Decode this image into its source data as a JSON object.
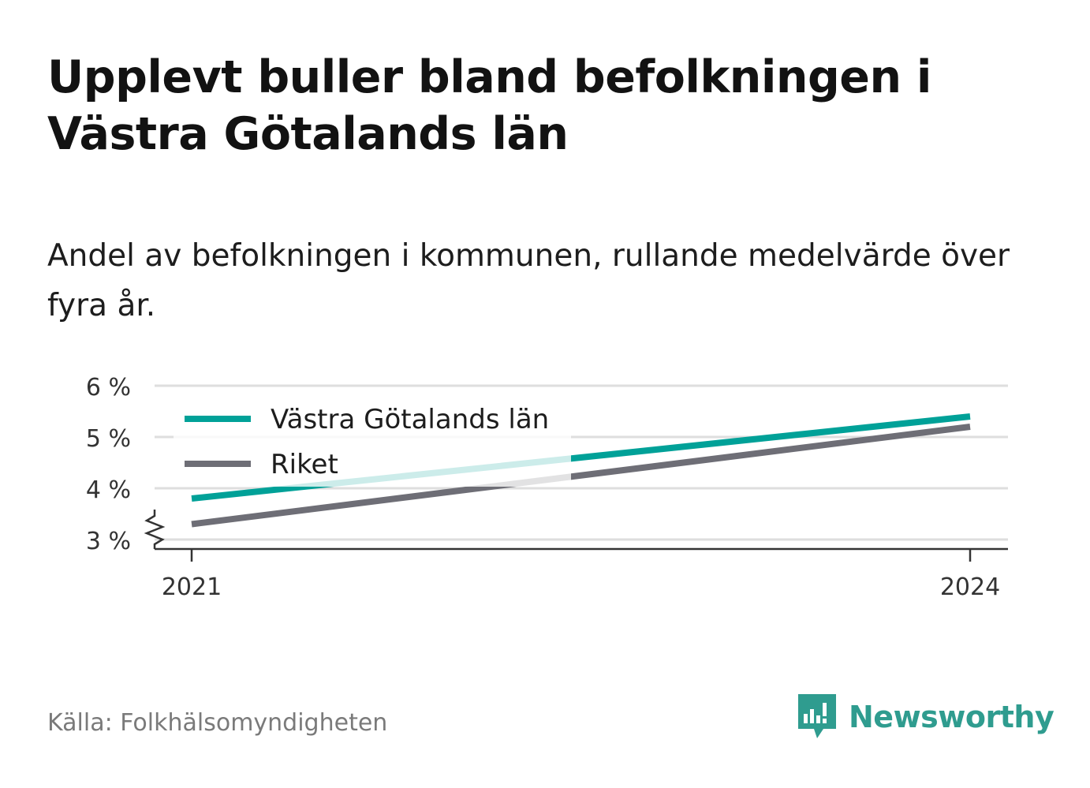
{
  "title": "Upplevt buller bland befolkningen i Västra Götalands län",
  "subtitle": "Andel av befolkningen i kommunen, rullande medelvärde över fyra år.",
  "source": "Källa: Folkhälsomyndigheten",
  "brand": "Newsworthy",
  "chart_data": {
    "type": "line",
    "x": [
      2021,
      2024
    ],
    "x_tick_labels": [
      "2021",
      "2024"
    ],
    "y_ticks": [
      3,
      4,
      5,
      6
    ],
    "y_tick_labels": [
      "3 %",
      "4 %",
      "5 %",
      "6 %"
    ],
    "ylim": [
      2.8,
      6
    ],
    "y_axis_break": true,
    "grid": true,
    "legend_position": "top-left",
    "series": [
      {
        "name": "Västra Götalands län",
        "values": [
          3.8,
          5.4
        ],
        "color": "#00a198"
      },
      {
        "name": "Riket",
        "values": [
          3.3,
          5.2
        ],
        "color": "#6e6e76"
      }
    ]
  }
}
